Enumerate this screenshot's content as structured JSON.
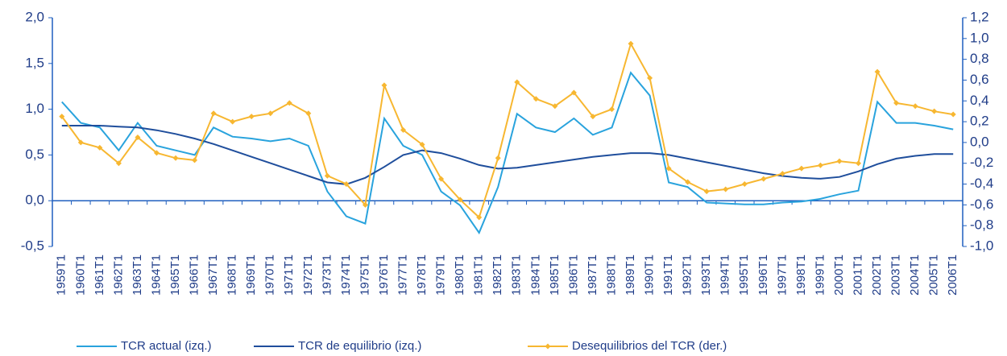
{
  "chart_data": {
    "type": "line",
    "categories": [
      "1959T1",
      "1960T1",
      "1961T1",
      "1962T1",
      "1963T1",
      "1964T1",
      "1965T1",
      "1966T1",
      "1967T1",
      "1968T1",
      "1969T1",
      "1970T1",
      "1971T1",
      "1972T1",
      "1973T1",
      "1974T1",
      "1975T1",
      "1976T1",
      "1977T1",
      "1978T1",
      "1979T1",
      "1980T1",
      "1981T1",
      "1982T1",
      "1983T1",
      "1984T1",
      "1985T1",
      "1986T1",
      "1987T1",
      "1988T1",
      "1989T1",
      "1990T1",
      "1991T1",
      "1992T1",
      "1993T1",
      "1994T1",
      "1995T1",
      "1996T1",
      "1997T1",
      "1998T1",
      "1999T1",
      "2000T1",
      "2001T1",
      "2002T1",
      "2003T1",
      "2004T1",
      "2005T1",
      "2006T1"
    ],
    "series": [
      {
        "name": "TCR actual (izq.)",
        "color": "#29a3dd",
        "values": [
          1.08,
          0.85,
          0.8,
          0.55,
          0.85,
          0.6,
          0.55,
          0.5,
          0.8,
          0.7,
          0.68,
          0.65,
          0.68,
          0.6,
          0.1,
          -0.17,
          -0.25,
          0.9,
          0.6,
          0.5,
          0.1,
          -0.05,
          -0.35,
          0.15,
          0.95,
          0.8,
          0.75,
          0.9,
          0.72,
          0.8,
          1.4,
          1.15,
          0.2,
          0.15,
          -0.02,
          -0.03,
          -0.04,
          -0.04,
          -0.02,
          -0.01,
          0.02,
          0.07,
          0.11,
          1.08,
          0.85,
          0.85,
          0.82,
          0.78
        ]
      },
      {
        "name": "TCR de equilibrio (izq.)",
        "color": "#1f4e9c",
        "values": [
          0.82,
          0.82,
          0.82,
          0.81,
          0.8,
          0.77,
          0.73,
          0.68,
          0.62,
          0.55,
          0.48,
          0.41,
          0.34,
          0.27,
          0.2,
          0.18,
          0.25,
          0.37,
          0.5,
          0.55,
          0.52,
          0.46,
          0.39,
          0.35,
          0.36,
          0.39,
          0.42,
          0.45,
          0.48,
          0.5,
          0.52,
          0.52,
          0.5,
          0.46,
          0.42,
          0.38,
          0.34,
          0.3,
          0.27,
          0.25,
          0.24,
          0.26,
          0.32,
          0.4,
          0.46,
          0.49,
          0.51,
          0.51
        ]
      },
      {
        "name": "Desequilibrios del TCR (der.)",
        "color": "#f7b731",
        "axis": "y2",
        "values": [
          0.25,
          0.0,
          -0.05,
          -0.2,
          0.05,
          -0.1,
          -0.15,
          -0.17,
          0.28,
          0.2,
          0.25,
          0.28,
          0.38,
          0.28,
          -0.32,
          -0.4,
          -0.6,
          0.55,
          0.12,
          -0.02,
          -0.35,
          -0.55,
          -0.72,
          -0.15,
          0.58,
          0.42,
          0.35,
          0.48,
          0.25,
          0.32,
          0.95,
          0.62,
          -0.25,
          -0.38,
          -0.47,
          -0.45,
          -0.4,
          -0.35,
          -0.3,
          -0.25,
          -0.22,
          -0.18,
          -0.2,
          0.68,
          0.38,
          0.35,
          0.3,
          0.27
        ]
      }
    ],
    "ylim": [
      -0.5,
      2.0
    ],
    "yticks": [
      {
        "value": -0.5,
        "label": "-0,5"
      },
      {
        "value": 0,
        "label": "0,0"
      },
      {
        "value": 0.5,
        "label": "0,5"
      },
      {
        "value": 1.0,
        "label": "1,0"
      },
      {
        "value": 1.5,
        "label": "1,5"
      },
      {
        "value": 2.0,
        "label": "2,0"
      }
    ],
    "y2lim": [
      -1.0,
      1.2
    ],
    "y2ticks": [
      {
        "value": -1.0,
        "label": "-1,0"
      },
      {
        "value": -0.8,
        "label": "-0,8"
      },
      {
        "value": -0.6,
        "label": "-0,6"
      },
      {
        "value": -0.4,
        "label": "-0,4"
      },
      {
        "value": -0.2,
        "label": "-0,2"
      },
      {
        "value": 0,
        "label": "0,0"
      },
      {
        "value": 0.2,
        "label": "0,2"
      },
      {
        "value": 0.4,
        "label": "0,4"
      },
      {
        "value": 0.6,
        "label": "0,6"
      },
      {
        "value": 0.8,
        "label": "0,8"
      },
      {
        "value": 1.0,
        "label": "1,0"
      },
      {
        "value": 1.2,
        "label": "1,2"
      }
    ],
    "grid": false
  }
}
